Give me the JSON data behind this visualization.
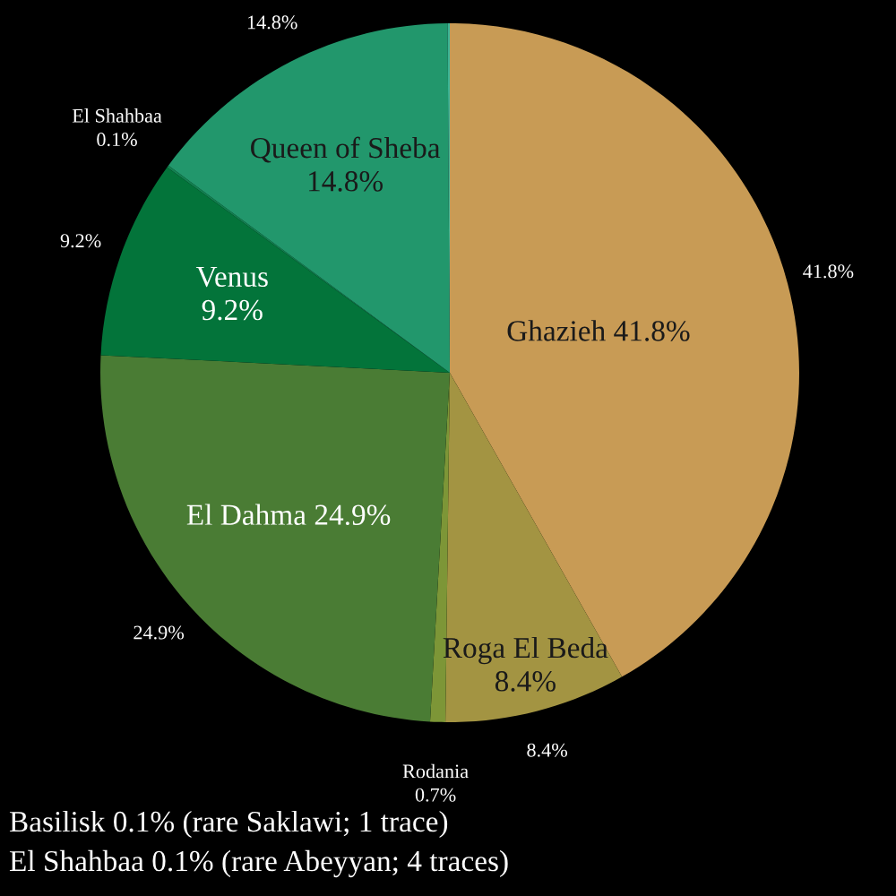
{
  "chart_data": {
    "type": "pie",
    "categories": [
      "Ghazieh",
      "Roga El Beda",
      "Rodania",
      "El Dahma",
      "Venus",
      "El Shahbaa",
      "Queen of Sheba",
      null
    ],
    "values": [
      41.8,
      8.4,
      0.7,
      24.9,
      9.2,
      0.1,
      14.8,
      0.1
    ],
    "colors": [
      "#c89b55",
      "#a39442",
      "#7d9637",
      "#4a7c34",
      "#03743a",
      "#128250",
      "#22976c",
      "#3cb496"
    ],
    "value_labels": [
      "41.8%",
      "8.4%",
      "0.7%",
      "24.9%",
      "9.2%",
      "0.1%",
      "14.8%",
      null
    ],
    "annotations": [
      "Basilisk 0.1% (rare Saklawi; 1 trace)",
      "El Shahbaa 0.1% (rare Abeyyan; 4 traces)"
    ]
  }
}
